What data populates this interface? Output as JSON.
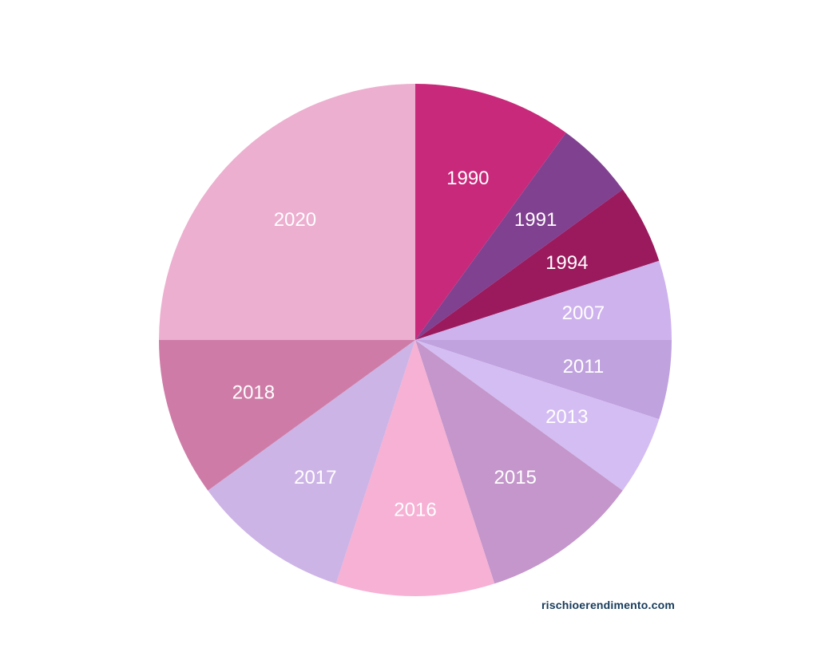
{
  "chart_data": {
    "type": "pie",
    "start_angle": "top (12 o'clock), clockwise",
    "slices": [
      {
        "label": "1990",
        "value": 10,
        "color": "#C8297B"
      },
      {
        "label": "1991",
        "value": 5,
        "color": "#804190"
      },
      {
        "label": "1994",
        "value": 5,
        "color": "#9A1A5D"
      },
      {
        "label": "2007",
        "value": 5,
        "color": "#CEB2ED"
      },
      {
        "label": "2011",
        "value": 5,
        "color": "#BFA2DE"
      },
      {
        "label": "2013",
        "value": 5,
        "color": "#D4BDF2"
      },
      {
        "label": "2015",
        "value": 10,
        "color": "#C496CB"
      },
      {
        "label": "2016",
        "value": 10,
        "color": "#F6B1D4"
      },
      {
        "label": "2017",
        "value": 10,
        "color": "#CDB4E6"
      },
      {
        "label": "2018",
        "value": 10,
        "color": "#CE7CA7"
      },
      {
        "label": "2020",
        "value": 25,
        "color": "#ECAFCF"
      }
    ]
  },
  "watermark": "rischioerendimento.com"
}
